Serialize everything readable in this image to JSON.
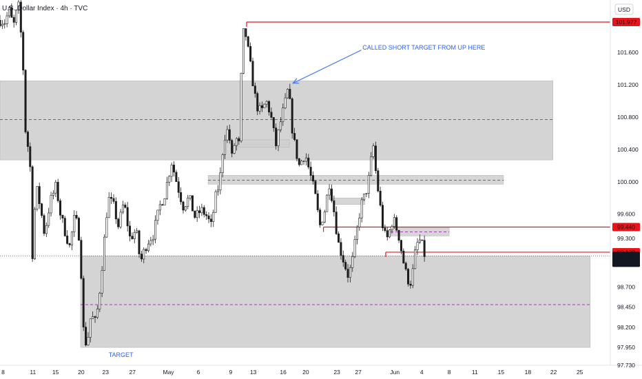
{
  "header": {
    "title": "U.S. Dollar Index · 4h · TVC",
    "currency": "USD"
  },
  "colors": {
    "up": "#089981",
    "down": "#f23645",
    "candle": "#1c1c1c",
    "zone": "#cfcfcf",
    "zone_border": "#b8b8b8",
    "mid": "#9c27b0",
    "level": "#e8141b",
    "note": "#2962ff",
    "price_bg": "#131722"
  },
  "chart_data": {
    "type": "candlestick",
    "y_range": [
      97.73,
      102.25
    ],
    "x_range": [
      0,
      100
    ],
    "y_ticks": [
      {
        "value": 101.977,
        "label": "101.977",
        "style": "red"
      },
      {
        "value": 101.6,
        "label": "101.600"
      },
      {
        "value": 101.2,
        "label": "101.200"
      },
      {
        "value": 100.8,
        "label": "100.800"
      },
      {
        "value": 100.4,
        "label": "100.400"
      },
      {
        "value": 100.0,
        "label": "100.000"
      },
      {
        "value": 99.6,
        "label": "99.600"
      },
      {
        "value": 99.44,
        "label": "99.440",
        "style": "red"
      },
      {
        "value": 99.3,
        "label": "99.300"
      },
      {
        "value": 99.129,
        "label": "99.129",
        "style": "red"
      },
      {
        "value": 99.083,
        "label": "99.083",
        "style": "dark",
        "sub": "03:25:02"
      },
      {
        "value": 98.7,
        "label": "98.700"
      },
      {
        "value": 98.45,
        "label": "98.450"
      },
      {
        "value": 98.2,
        "label": "98.200"
      },
      {
        "value": 97.95,
        "label": "97.950"
      },
      {
        "value": 97.73,
        "label": "97.730"
      }
    ],
    "x_ticks": [
      {
        "x": 0.5,
        "label": "8"
      },
      {
        "x": 5.4,
        "label": "11"
      },
      {
        "x": 9.1,
        "label": "15"
      },
      {
        "x": 13.3,
        "label": "20"
      },
      {
        "x": 17.3,
        "label": "23"
      },
      {
        "x": 21.7,
        "label": "27"
      },
      {
        "x": 27.6,
        "label": "May"
      },
      {
        "x": 32.5,
        "label": "6"
      },
      {
        "x": 37.8,
        "label": "9"
      },
      {
        "x": 41.5,
        "label": "13"
      },
      {
        "x": 46.4,
        "label": "16"
      },
      {
        "x": 50.1,
        "label": "20"
      },
      {
        "x": 55.2,
        "label": "23"
      },
      {
        "x": 58.7,
        "label": "27"
      },
      {
        "x": 64.7,
        "label": "Jun"
      },
      {
        "x": 69.1,
        "label": "4"
      },
      {
        "x": 73.6,
        "label": "8"
      },
      {
        "x": 77.8,
        "label": "11"
      },
      {
        "x": 82.1,
        "label": "15"
      },
      {
        "x": 86.5,
        "label": "18"
      },
      {
        "x": 90.7,
        "label": "22"
      },
      {
        "x": 95.0,
        "label": "25"
      }
    ],
    "zones": [
      {
        "x1": 0,
        "x2": 90.6,
        "y1": 100.27,
        "y2": 101.25,
        "mid": 100.77
      },
      {
        "x1": 13.2,
        "x2": 96.7,
        "y1": 97.95,
        "y2": 99.08,
        "mid": 98.48
      },
      {
        "x1": 34.1,
        "x2": 82.5,
        "y1": 99.97,
        "y2": 100.08,
        "mid": 100.02
      },
      {
        "x1": 39.0,
        "x2": 47.4,
        "y1": 100.43,
        "y2": 100.52
      },
      {
        "x1": 54.6,
        "x2": 59.8,
        "y1": 99.72,
        "y2": 99.8
      },
      {
        "x1": 64.0,
        "x2": 73.6,
        "y1": 99.33,
        "y2": 99.44,
        "mid": 99.38
      }
    ],
    "levels": [
      {
        "value": 101.977,
        "x1": 40.4
      },
      {
        "value": 99.44,
        "x1": 53.0
      },
      {
        "value": 99.129,
        "x1": 63.2
      }
    ],
    "current_price": 99.083,
    "annotations": [
      {
        "text": "CALLED SHORT TARGET FROM UP HERE",
        "x": 59.4,
        "y": 101.66
      },
      {
        "text": "TARGET",
        "x": 17.8,
        "y": 97.86
      }
    ],
    "path": [
      [
        0.0,
        102.0
      ],
      [
        0.8,
        101.98
      ],
      [
        1.5,
        102.12
      ],
      [
        2.2,
        101.92
      ],
      [
        3.0,
        102.2
      ],
      [
        3.7,
        101.6
      ],
      [
        4.2,
        100.6
      ],
      [
        4.9,
        100.3
      ],
      [
        5.3,
        99.08
      ],
      [
        5.9,
        99.95
      ],
      [
        6.6,
        99.7
      ],
      [
        7.3,
        99.35
      ],
      [
        8.2,
        99.75
      ],
      [
        9.2,
        99.95
      ],
      [
        9.9,
        99.6
      ],
      [
        10.6,
        99.4
      ],
      [
        11.4,
        99.2
      ],
      [
        12.2,
        99.55
      ],
      [
        12.8,
        99.45
      ],
      [
        13.2,
        99.1
      ],
      [
        13.6,
        98.2
      ],
      [
        14.2,
        97.96
      ],
      [
        14.9,
        98.35
      ],
      [
        15.7,
        98.25
      ],
      [
        16.4,
        98.7
      ],
      [
        17.0,
        99.2
      ],
      [
        17.7,
        99.8
      ],
      [
        18.6,
        99.7
      ],
      [
        19.4,
        99.45
      ],
      [
        20.3,
        99.75
      ],
      [
        21.3,
        99.3
      ],
      [
        22.3,
        99.4
      ],
      [
        23.0,
        99.0
      ],
      [
        24.1,
        99.25
      ],
      [
        25.1,
        99.35
      ],
      [
        26.2,
        99.7
      ],
      [
        27.0,
        99.85
      ],
      [
        28.1,
        100.25
      ],
      [
        29.1,
        99.95
      ],
      [
        30.0,
        99.7
      ],
      [
        31.0,
        99.8
      ],
      [
        32.0,
        99.55
      ],
      [
        32.9,
        99.65
      ],
      [
        33.7,
        99.6
      ],
      [
        34.6,
        99.45
      ],
      [
        35.3,
        99.8
      ],
      [
        36.0,
        100.0
      ],
      [
        36.7,
        100.55
      ],
      [
        37.4,
        100.65
      ],
      [
        38.0,
        100.3
      ],
      [
        38.6,
        100.55
      ],
      [
        39.2,
        100.45
      ],
      [
        39.6,
        101.5
      ],
      [
        40.0,
        101.95
      ],
      [
        40.7,
        101.6
      ],
      [
        41.3,
        101.3
      ],
      [
        42.0,
        100.95
      ],
      [
        42.8,
        100.85
      ],
      [
        43.6,
        101.0
      ],
      [
        44.3,
        100.85
      ],
      [
        45.2,
        100.45
      ],
      [
        46.0,
        100.75
      ],
      [
        46.8,
        101.0
      ],
      [
        47.3,
        101.18
      ],
      [
        47.7,
        100.75
      ],
      [
        48.3,
        100.45
      ],
      [
        49.0,
        100.2
      ],
      [
        50.0,
        100.35
      ],
      [
        50.8,
        100.1
      ],
      [
        51.6,
        99.85
      ],
      [
        52.4,
        99.45
      ],
      [
        53.2,
        99.65
      ],
      [
        54.0,
        100.0
      ],
      [
        54.8,
        99.6
      ],
      [
        55.4,
        99.25
      ],
      [
        56.2,
        99.05
      ],
      [
        57.0,
        98.85
      ],
      [
        57.6,
        98.95
      ],
      [
        58.3,
        99.3
      ],
      [
        59.1,
        99.7
      ],
      [
        59.9,
        99.85
      ],
      [
        60.6,
        100.1
      ],
      [
        61.1,
        100.5
      ],
      [
        61.6,
        100.1
      ],
      [
        62.2,
        99.75
      ],
      [
        62.9,
        99.35
      ],
      [
        63.5,
        99.3
      ],
      [
        64.4,
        99.55
      ],
      [
        65.3,
        99.35
      ],
      [
        66.0,
        99.05
      ],
      [
        66.7,
        98.8
      ],
      [
        67.4,
        98.75
      ],
      [
        68.0,
        99.1
      ],
      [
        68.6,
        99.3
      ],
      [
        69.2,
        99.2
      ],
      [
        69.6,
        99.083
      ]
    ]
  }
}
